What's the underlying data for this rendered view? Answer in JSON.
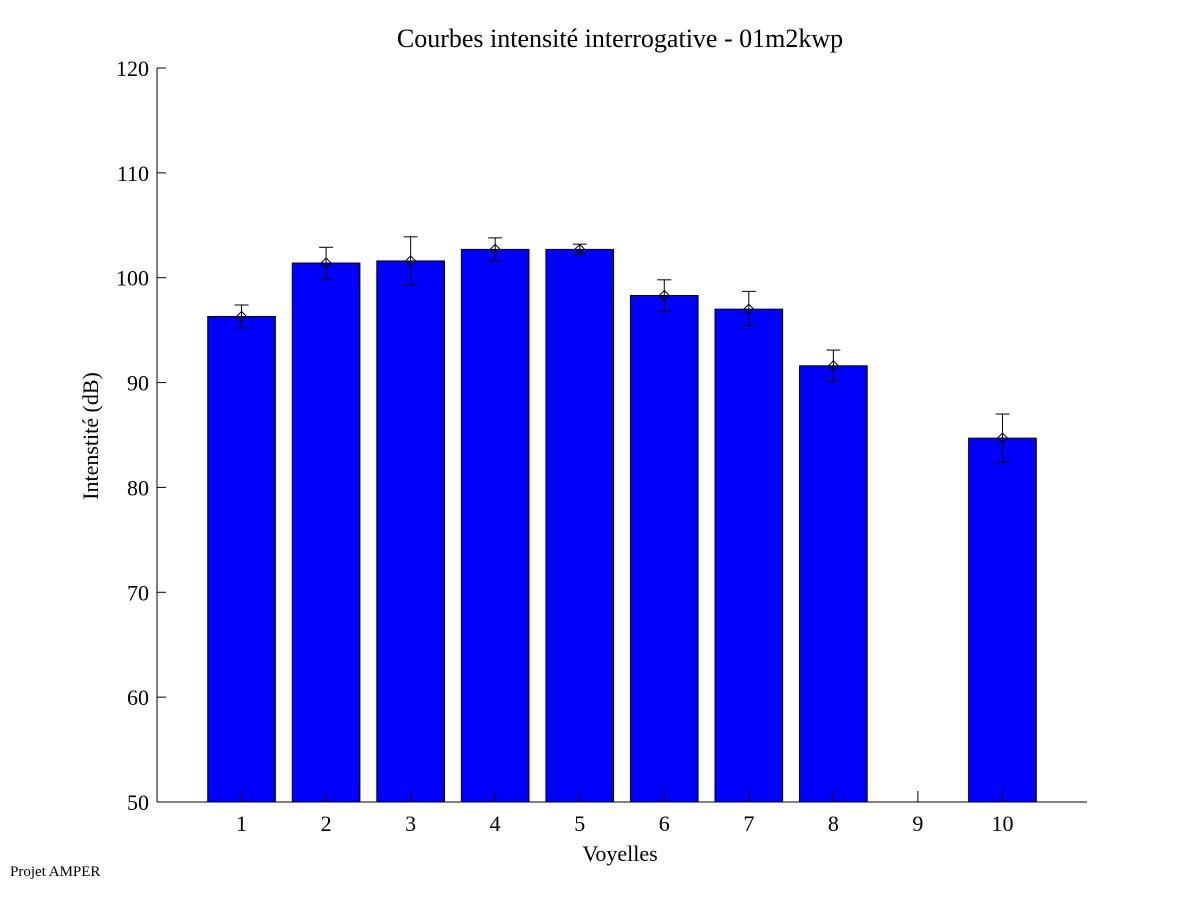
{
  "chart_data": {
    "type": "bar",
    "title": "Courbes intensité interrogative - 01m2kwp",
    "xlabel": "Voyelles",
    "ylabel": "Intenstité (dB)",
    "categories": [
      "1",
      "2",
      "3",
      "4",
      "5",
      "6",
      "7",
      "8",
      "9",
      "10"
    ],
    "values": [
      96.3,
      101.4,
      101.6,
      102.7,
      102.7,
      98.3,
      97.0,
      91.6,
      null,
      84.7
    ],
    "error_low": [
      95.2,
      99.9,
      99.3,
      101.6,
      102.2,
      96.8,
      95.4,
      90.1,
      null,
      82.4
    ],
    "error_high": [
      97.4,
      102.9,
      103.9,
      103.8,
      103.2,
      99.8,
      98.7,
      93.1,
      null,
      87.0
    ],
    "ylim": [
      50,
      120
    ],
    "yticks": [
      50,
      60,
      70,
      80,
      90,
      100,
      110,
      120
    ],
    "bar_color": "#0000ff",
    "grid": false
  },
  "footer": "Projet AMPER"
}
